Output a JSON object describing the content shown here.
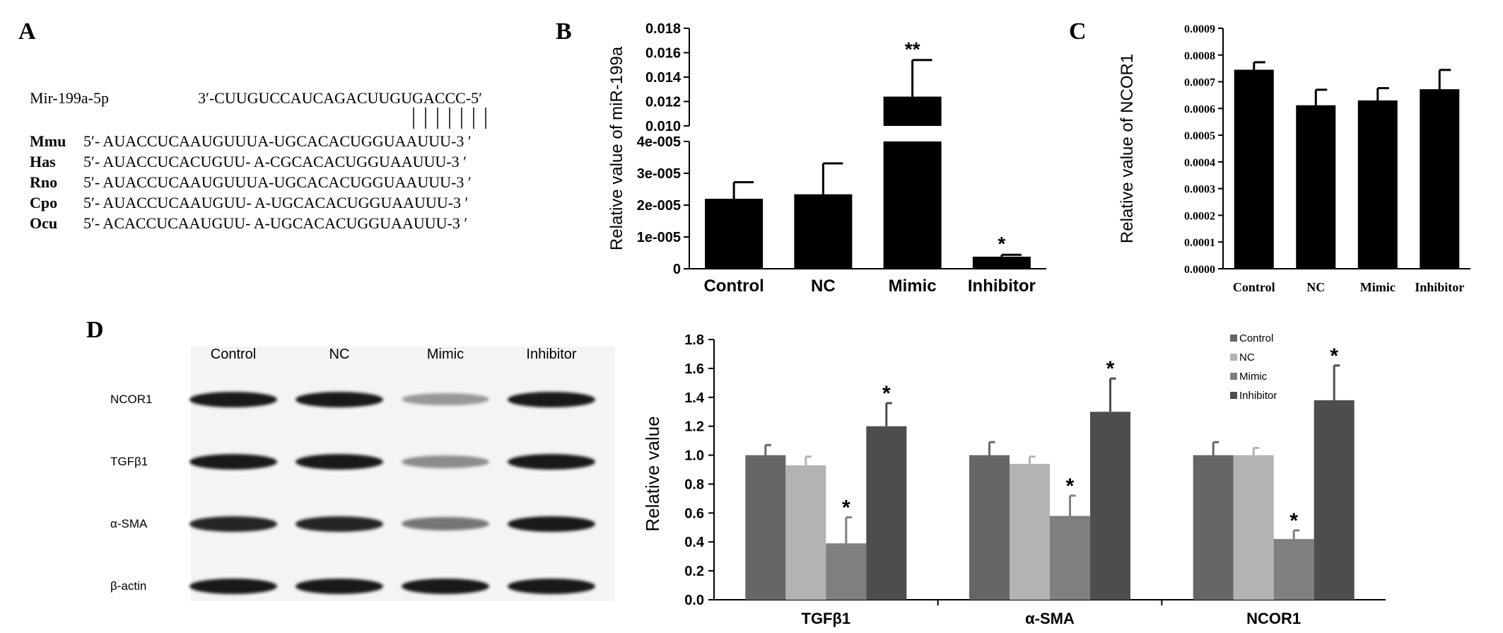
{
  "panels": {
    "a": "A",
    "b": "B",
    "c": "C",
    "d": "D"
  },
  "alignment": {
    "mir_name": "Mir-199a-5p",
    "mir_seq": "3′-CUUGUCCAUCAGACUUGUGACCC-5′",
    "species": [
      {
        "name": "Mmu",
        "seq": "5′- AUACCUCAAUGUUUA-UGCACACUGGUAAUUU-3 ′"
      },
      {
        "name": "Has",
        "seq": "5′- AUACCUCACUGUU- A-CGCACACUGGUAAUUU-3 ′"
      },
      {
        "name": "Rno",
        "seq": "5′- AUACCUCAAUGUUUA-UGCACACUGGUAAUUU-3 ′"
      },
      {
        "name": "Cpo",
        "seq": "5′- AUACCUCAAUGUU- A-UGCACACUGGUAAUUU-3 ′"
      },
      {
        "name": "Ocu",
        "seq": "5′- ACACCUCAAUGUU- A-UGCACACUGGUAAUUU-3 ′"
      }
    ]
  },
  "blot": {
    "columns": [
      "Control",
      "NC",
      "Mimic",
      "Inhibitor"
    ],
    "rows": [
      {
        "label": "NCOR1",
        "intensity": [
          1.0,
          1.0,
          0.45,
          1.0
        ]
      },
      {
        "label": "TGFβ1",
        "intensity": [
          1.0,
          1.0,
          0.5,
          1.0
        ]
      },
      {
        "label": "α-SMA",
        "intensity": [
          0.95,
          0.95,
          0.6,
          1.0
        ]
      },
      {
        "label": "β-actin",
        "intensity": [
          1.0,
          1.0,
          1.0,
          1.0
        ]
      }
    ]
  },
  "chart_data": [
    {
      "id": "B",
      "type": "bar",
      "ylabel": "Relative value of miR-199a",
      "categories": [
        "Control",
        "NC",
        "Mimic",
        "Inhibitor"
      ],
      "values": [
        2.2e-05,
        2.34e-05,
        0.0124,
        3.8e-06
      ],
      "errors": [
        5.2e-06,
        9.7e-06,
        0.003,
        6e-07
      ],
      "annotations": [
        "",
        "",
        "**",
        "*"
      ],
      "broken_axis": true,
      "lower_ylim": [
        0,
        4e-05
      ],
      "lower_ticks": [
        "0",
        "1e-005",
        "2e-005",
        "3e-005",
        "4e-005"
      ],
      "upper_ylim": [
        0.01,
        0.018
      ],
      "upper_ticks": [
        "0.010",
        "0.012",
        "0.014",
        "0.016",
        "0.018"
      ],
      "color": "#000000"
    },
    {
      "id": "C",
      "type": "bar",
      "ylabel": "Relative value of NCOR1",
      "categories": [
        "Control",
        "NC",
        "Mimic",
        "Inhibitor"
      ],
      "values": [
        0.000745,
        0.000612,
        0.00063,
        0.000672
      ],
      "errors": [
        2.8e-05,
        5.8e-05,
        4.6e-05,
        7.2e-05
      ],
      "ylim": [
        0,
        0.0009
      ],
      "ticks": [
        "0.0000",
        "0.0001",
        "0.0002",
        "0.0003",
        "0.0004",
        "0.0005",
        "0.0006",
        "0.0007",
        "0.0008",
        "0.0009"
      ],
      "color": "#000000"
    },
    {
      "id": "D",
      "type": "bar",
      "ylabel": "Relative value",
      "categories": [
        "TGFβ1",
        "α-SMA",
        "NCOR1"
      ],
      "ylim": [
        0,
        1.8
      ],
      "ticks": [
        "0.0",
        "0.2",
        "0.4",
        "0.6",
        "0.8",
        "1.0",
        "1.2",
        "1.4",
        "1.6",
        "1.8"
      ],
      "legend_position": "top-right",
      "series": [
        {
          "name": "Control",
          "color": "#666666",
          "values": [
            1.0,
            1.0,
            1.0
          ],
          "errors": [
            0.07,
            0.09,
            0.09
          ],
          "annotations": [
            "",
            "",
            ""
          ]
        },
        {
          "name": "NC",
          "color": "#b3b3b3",
          "values": [
            0.93,
            0.94,
            1.0
          ],
          "errors": [
            0.06,
            0.05,
            0.05
          ],
          "annotations": [
            "",
            "",
            ""
          ]
        },
        {
          "name": "Mimic",
          "color": "#7f7f7f",
          "values": [
            0.39,
            0.58,
            0.42
          ],
          "errors": [
            0.18,
            0.14,
            0.06
          ],
          "annotations": [
            "*",
            "*",
            "*"
          ]
        },
        {
          "name": "Inhibitor",
          "color": "#4d4d4d",
          "values": [
            1.2,
            1.3,
            1.38
          ],
          "errors": [
            0.16,
            0.23,
            0.24
          ],
          "annotations": [
            "*",
            "*",
            "*"
          ]
        }
      ]
    }
  ]
}
